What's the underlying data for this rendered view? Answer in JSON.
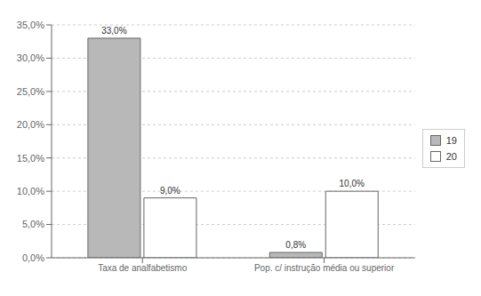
{
  "chart_data": {
    "type": "bar",
    "categories": [
      "Taxa de analfabetismo",
      "Pop. c/ instrução média ou superior"
    ],
    "series": [
      {
        "name": "19",
        "color": "#b8b8b8",
        "values": [
          33.0,
          0.8
        ],
        "value_labels": [
          "33,0%",
          "0,8%"
        ]
      },
      {
        "name": "20",
        "color": "#ffffff",
        "values": [
          9.0,
          10.0
        ],
        "value_labels": [
          "9,0%",
          "10,0%"
        ]
      }
    ],
    "ylim": [
      0,
      35
    ],
    "yticks": [
      {
        "value": 0,
        "label": "0,0%"
      },
      {
        "value": 5,
        "label": "5,0%"
      },
      {
        "value": 10,
        "label": "10,0%"
      },
      {
        "value": 15,
        "label": "15,0%"
      },
      {
        "value": 20,
        "label": "20,0%"
      },
      {
        "value": 25,
        "label": "25,0%"
      },
      {
        "value": 30,
        "label": "30,0%"
      },
      {
        "value": 35,
        "label": "35,0%"
      }
    ],
    "grid": true,
    "legend": "right",
    "data_labels": true
  }
}
